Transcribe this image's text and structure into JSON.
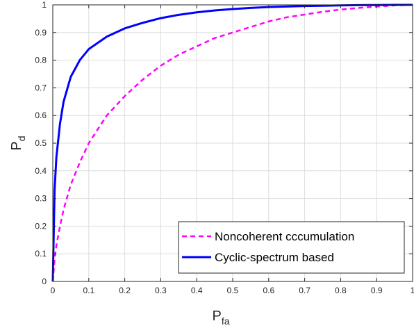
{
  "chart_data": {
    "type": "line",
    "xlabel": {
      "main": "P",
      "sub": "fa"
    },
    "ylabel": {
      "main": "P",
      "sub": "d"
    },
    "xlim": [
      0,
      1
    ],
    "ylim": [
      0,
      1
    ],
    "xticks": [
      "0",
      "0.1",
      "0.2",
      "0.3",
      "0.4",
      "0.5",
      "0.6",
      "0.7",
      "0.8",
      "0.9",
      "1"
    ],
    "yticks": [
      "0",
      "0.1",
      "0.2",
      "0.3",
      "0.4",
      "0.5",
      "0.6",
      "0.7",
      "0.8",
      "0.9",
      "1"
    ],
    "grid": true,
    "legend_position": "bottom-right",
    "x": [
      0,
      0.005,
      0.01,
      0.02,
      0.03,
      0.05,
      0.075,
      0.1,
      0.15,
      0.2,
      0.25,
      0.3,
      0.35,
      0.4,
      0.45,
      0.5,
      0.55,
      0.6,
      0.65,
      0.7,
      0.75,
      0.8,
      0.85,
      0.9,
      0.95,
      1
    ],
    "series": [
      {
        "name": "Noncoherent cccumulation",
        "color": "#ff00ff",
        "style": "dashed",
        "values": [
          0,
          0.08,
          0.13,
          0.2,
          0.26,
          0.35,
          0.43,
          0.5,
          0.6,
          0.67,
          0.73,
          0.78,
          0.82,
          0.85,
          0.88,
          0.9,
          0.92,
          0.94,
          0.955,
          0.965,
          0.975,
          0.983,
          0.989,
          0.994,
          0.998,
          1
        ]
      },
      {
        "name": "Cyclic-spectrum based",
        "color": "#0000ff",
        "style": "solid",
        "values": [
          0,
          0.33,
          0.45,
          0.57,
          0.65,
          0.74,
          0.8,
          0.84,
          0.885,
          0.915,
          0.935,
          0.952,
          0.964,
          0.973,
          0.98,
          0.985,
          0.989,
          0.992,
          0.994,
          0.996,
          0.997,
          0.998,
          0.999,
          0.9995,
          1,
          1
        ]
      }
    ]
  }
}
